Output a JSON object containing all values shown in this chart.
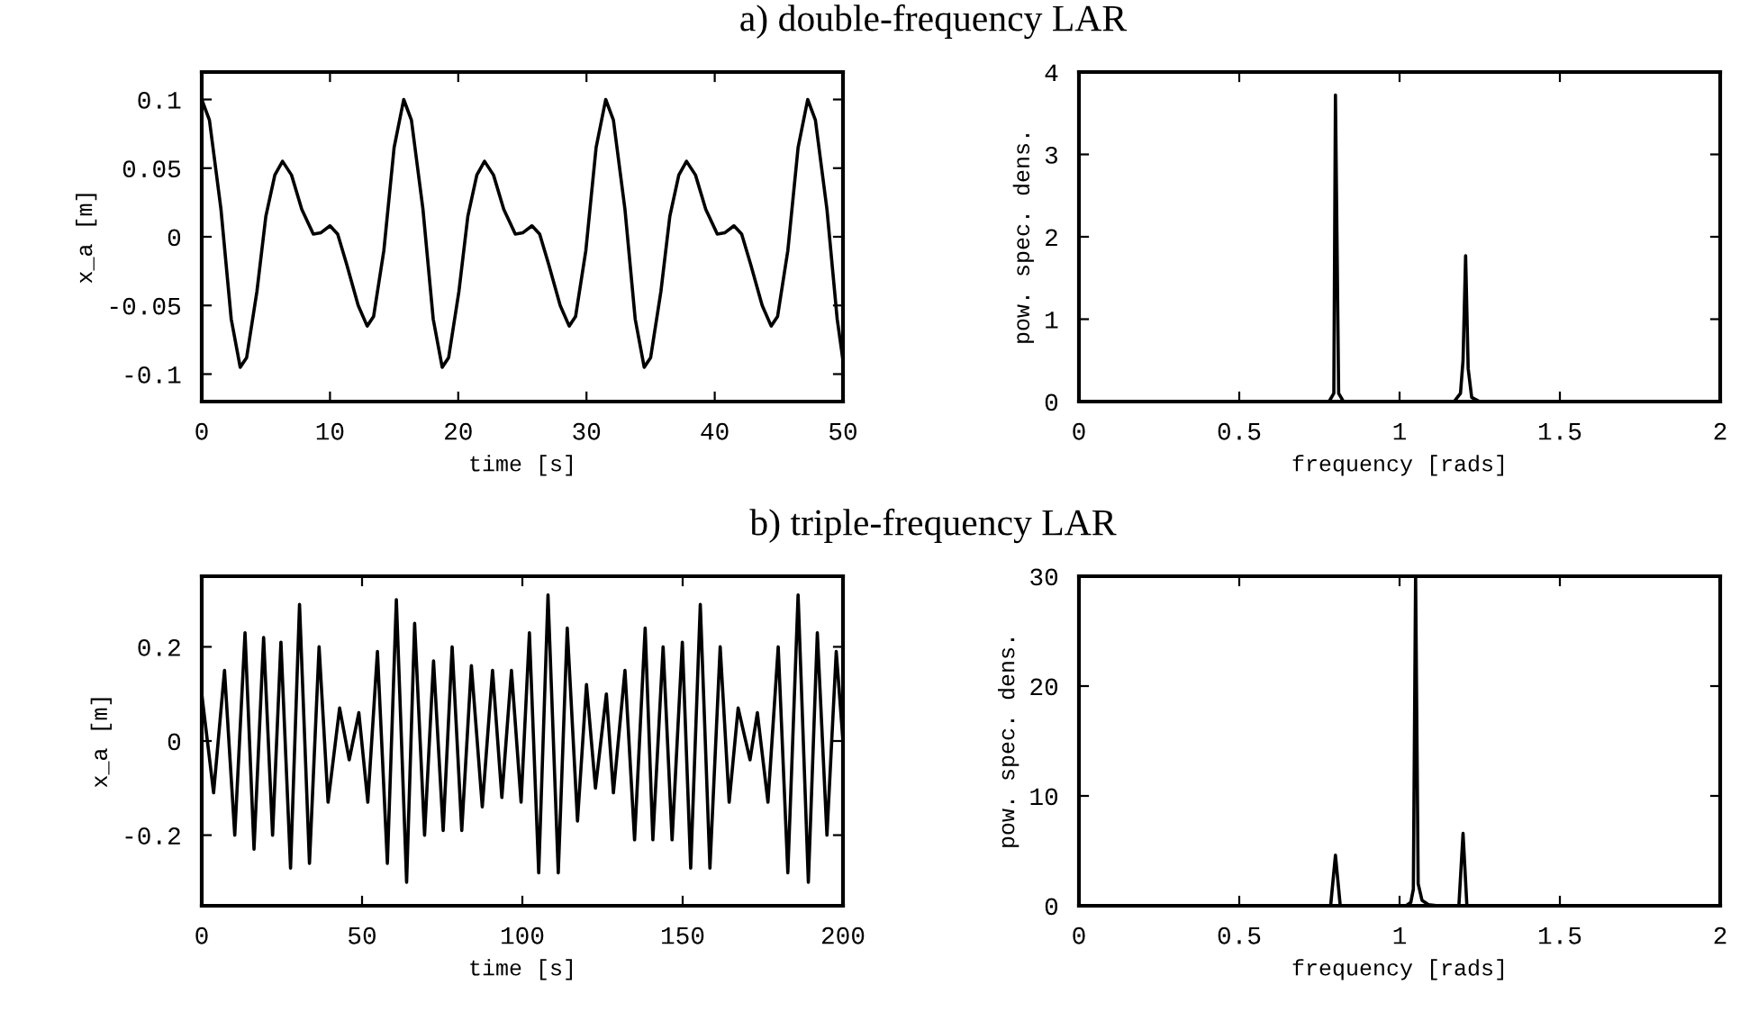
{
  "chart_data": [
    {
      "type": "line",
      "title": "a) double-frequency LAR",
      "xlabel": "time [s]",
      "ylabel": "x_a [m]",
      "xlim": [
        0,
        50
      ],
      "xticks": [
        0,
        10,
        20,
        30,
        40,
        50
      ],
      "ylim": [
        -0.12,
        0.12
      ],
      "yticks": [
        -0.1,
        -0.05,
        0,
        0.05,
        0.1
      ],
      "series": [
        {
          "color": "#000000",
          "x": [
            0,
            0.6,
            1.5,
            2.3,
            3.0,
            3.5,
            4.3,
            5.0,
            5.7,
            6.3,
            7.0,
            7.8,
            8.7,
            9.3,
            10.0,
            10.6,
            11.3,
            12.2,
            12.9,
            13.4,
            14.2,
            15.0,
            15.75,
            16.35,
            17.25,
            18.05,
            18.75,
            19.25,
            20.05,
            20.75,
            21.45,
            22.05,
            22.75,
            23.55,
            24.45,
            25.05,
            25.75,
            26.35,
            27.05,
            27.95,
            28.65,
            29.15,
            29.95,
            30.75,
            31.5,
            32.1,
            33.0,
            33.8,
            34.5,
            35.0,
            35.8,
            36.5,
            37.2,
            37.8,
            38.5,
            39.3,
            40.2,
            40.8,
            41.5,
            42.1,
            42.8,
            43.7,
            44.4,
            44.9,
            45.7,
            46.5,
            47.25,
            47.85,
            48.75,
            49.55,
            50
          ],
          "values": [
            0.1,
            0.085,
            0.02,
            -0.06,
            -0.095,
            -0.088,
            -0.04,
            0.015,
            0.045,
            0.055,
            0.045,
            0.02,
            0.002,
            0.003,
            0.008,
            0.002,
            -0.02,
            -0.05,
            -0.065,
            -0.058,
            -0.01,
            0.065,
            0.1,
            0.085,
            0.02,
            -0.06,
            -0.095,
            -0.088,
            -0.04,
            0.015,
            0.045,
            0.055,
            0.045,
            0.02,
            0.002,
            0.003,
            0.008,
            0.002,
            -0.02,
            -0.05,
            -0.065,
            -0.058,
            -0.01,
            0.065,
            0.1,
            0.085,
            0.02,
            -0.06,
            -0.095,
            -0.088,
            -0.04,
            0.015,
            0.045,
            0.055,
            0.045,
            0.02,
            0.002,
            0.003,
            0.008,
            0.002,
            -0.02,
            -0.05,
            -0.065,
            -0.058,
            -0.01,
            0.065,
            0.1,
            0.085,
            0.02,
            -0.06,
            -0.09
          ]
        }
      ]
    },
    {
      "type": "line",
      "xlabel": "frequency [rads]",
      "ylabel": "pow. spec. dens.",
      "xlim": [
        0,
        2
      ],
      "xticks": [
        0,
        0.5,
        1,
        1.5,
        2
      ],
      "ylim": [
        0,
        4
      ],
      "yticks": [
        0,
        1,
        2,
        3,
        4
      ],
      "series": [
        {
          "color": "#000000",
          "x": [
            0,
            0.78,
            0.795,
            0.8,
            0.81,
            0.825,
            1.17,
            1.19,
            1.198,
            1.206,
            1.214,
            1.225,
            1.25,
            2
          ],
          "values": [
            0,
            0,
            0.1,
            3.72,
            0.1,
            0,
            0,
            0.1,
            0.5,
            1.77,
            0.4,
            0.05,
            0,
            0
          ]
        }
      ]
    },
    {
      "type": "line",
      "title": "b) triple-frequency LAR",
      "xlabel": "time [s]",
      "ylabel": "x_a [m]",
      "xlim": [
        0,
        200
      ],
      "xticks": [
        0,
        50,
        100,
        150,
        200
      ],
      "ylim": [
        -0.35,
        0.35
      ],
      "yticks": [
        -0.2,
        0,
        0.2
      ],
      "series": [
        {
          "color": "#000000",
          "x": [
            0,
            3.7,
            7.1,
            10.3,
            13.5,
            16.3,
            19.3,
            22.1,
            24.7,
            27.7,
            30.5,
            33.6,
            36.6,
            39.4,
            43.0,
            46.0,
            49.0,
            51.8,
            54.8,
            57.9,
            60.7,
            63.9,
            66.4,
            69.5,
            72.3,
            75.3,
            78.1,
            81.1,
            84.1,
            87.5,
            90.7,
            93.6,
            96.6,
            99.6,
            102.2,
            105.1,
            108.0,
            111.2,
            114.0,
            117.2,
            120.0,
            122.8,
            126.2,
            128.4,
            132.0,
            135.0,
            138.3,
            140.7,
            143.9,
            146.7,
            149.9,
            152.5,
            155.5,
            158.5,
            161.7,
            164.5,
            167.3,
            171.0,
            173.3,
            176.6,
            179.8,
            182.8,
            186.0,
            189.2,
            192.0,
            195.0,
            197.9,
            200
          ],
          "values": [
            0.1,
            -0.11,
            0.15,
            -0.2,
            0.23,
            -0.23,
            0.22,
            -0.2,
            0.21,
            -0.27,
            0.29,
            -0.26,
            0.2,
            -0.13,
            0.07,
            -0.04,
            0.06,
            -0.13,
            0.19,
            -0.26,
            0.3,
            -0.3,
            0.25,
            -0.2,
            0.17,
            -0.19,
            0.2,
            -0.19,
            0.16,
            -0.14,
            0.15,
            -0.12,
            0.15,
            -0.13,
            0.23,
            -0.28,
            0.31,
            -0.28,
            0.24,
            -0.17,
            0.12,
            -0.1,
            0.1,
            -0.11,
            0.15,
            -0.21,
            0.24,
            -0.21,
            0.2,
            -0.21,
            0.21,
            -0.27,
            0.29,
            -0.27,
            0.2,
            -0.13,
            0.07,
            -0.04,
            0.06,
            -0.13,
            0.2,
            -0.28,
            0.31,
            -0.3,
            0.23,
            -0.2,
            0.19,
            0.0
          ]
        }
      ]
    },
    {
      "type": "line",
      "xlabel": "frequency [rads]",
      "ylabel": "pow. spec. dens.",
      "xlim": [
        0,
        2
      ],
      "xticks": [
        0,
        0.5,
        1,
        1.5,
        2
      ],
      "ylim": [
        0,
        30
      ],
      "yticks": [
        0,
        10,
        20,
        30
      ],
      "series": [
        {
          "color": "#000000",
          "x": [
            0,
            0.785,
            0.8,
            0.815,
            1.02,
            1.035,
            1.043,
            1.05,
            1.058,
            1.07,
            1.09,
            1.12,
            1.185,
            1.198,
            1.21,
            2
          ],
          "values": [
            0,
            0,
            4.6,
            0,
            0,
            0.3,
            1.5,
            30,
            2,
            0.5,
            0.1,
            0,
            0,
            6.6,
            0,
            0
          ]
        }
      ]
    }
  ]
}
